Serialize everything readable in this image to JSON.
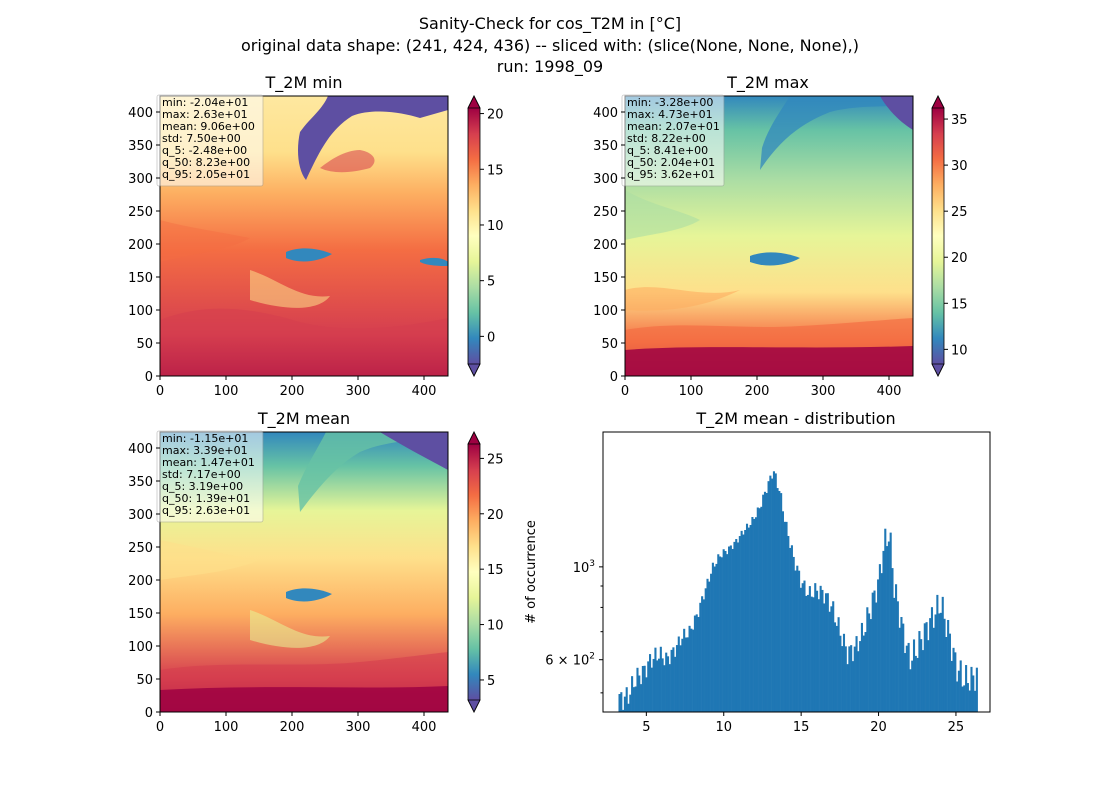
{
  "figure": {
    "suptitle": [
      "Sanity-Check for cos_T2M in [°C]",
      "original data shape: (241, 424, 436) -- sliced with: (slice(None, None, None),)",
      "run: 1998_09"
    ]
  },
  "maps": [
    {
      "title": "T_2M min",
      "x_ticks": [
        "0",
        "100",
        "200",
        "300",
        "400"
      ],
      "y_ticks": [
        "0",
        "50",
        "100",
        "150",
        "200",
        "250",
        "300",
        "350",
        "400"
      ],
      "cbar_ticks": [
        "0",
        "5",
        "10",
        "15",
        "20"
      ],
      "cbar_values": [
        0,
        5,
        10,
        15,
        20
      ],
      "cbar_range": [
        -2.48,
        20.5
      ],
      "stats": [
        "min: -2.04e+01",
        "max: 2.63e+01",
        "mean: 9.06e+00",
        "std: 7.50e+00",
        "q_5: -2.48e+00",
        "q_50: 8.23e+00",
        "q_95: 2.05e+01"
      ]
    },
    {
      "title": "T_2M max",
      "x_ticks": [
        "0",
        "100",
        "200",
        "300",
        "400"
      ],
      "y_ticks": [
        "0",
        "50",
        "100",
        "150",
        "200",
        "250",
        "300",
        "350",
        "400"
      ],
      "cbar_ticks": [
        "10",
        "15",
        "20",
        "25",
        "30",
        "35"
      ],
      "cbar_values": [
        10,
        15,
        20,
        25,
        30,
        35
      ],
      "cbar_range": [
        8.41,
        36.2
      ],
      "stats": [
        "min: -3.28e+00",
        "max: 4.73e+01",
        "mean: 2.07e+01",
        "std: 8.22e+00",
        "q_5: 8.41e+00",
        "q_50: 2.04e+01",
        "q_95: 3.62e+01"
      ]
    },
    {
      "title": "T_2M mean",
      "x_ticks": [
        "0",
        "100",
        "200",
        "300",
        "400"
      ],
      "y_ticks": [
        "0",
        "50",
        "100",
        "150",
        "200",
        "250",
        "300",
        "350",
        "400"
      ],
      "cbar_ticks": [
        "5",
        "10",
        "15",
        "20",
        "25"
      ],
      "cbar_values": [
        5,
        10,
        15,
        20,
        25
      ],
      "cbar_range": [
        3.19,
        26.3
      ],
      "stats": [
        "min: -1.15e+01",
        "max: 3.39e+01",
        "mean: 1.47e+01",
        "std: 7.17e+00",
        "q_5: 3.19e+00",
        "q_50: 1.39e+01",
        "q_95: 2.63e+01"
      ]
    }
  ],
  "colors": {
    "spectral_r": [
      "#5e4fa2",
      "#3288bd",
      "#66c2a5",
      "#abdda4",
      "#e6f598",
      "#ffffbf",
      "#fee08b",
      "#fdae61",
      "#f46d43",
      "#d53e4f",
      "#9e0142"
    ],
    "bar": "#1f77b4"
  },
  "chart_data": {
    "type": "bar",
    "title": "T_2M mean - distribution",
    "xlabel": "",
    "ylabel": "# of occurrence",
    "yscale": "log",
    "xlim": [
      2.2,
      27.2
    ],
    "ylim": [
      450,
      2100
    ],
    "x_ticks": [
      5,
      10,
      15,
      20,
      25
    ],
    "y_tick_labels": [
      {
        "value": 1000,
        "base": "10",
        "exp": "3"
      },
      {
        "value": 600,
        "base": "6 × 10",
        "exp": "2"
      }
    ],
    "y_minor_ticks": [
      500,
      700,
      800,
      900
    ],
    "profile": [
      [
        3.2,
        480
      ],
      [
        3.8,
        490
      ],
      [
        4.3,
        540
      ],
      [
        4.8,
        560
      ],
      [
        5.3,
        600
      ],
      [
        5.8,
        620
      ],
      [
        6.3,
        600
      ],
      [
        6.8,
        630
      ],
      [
        7.3,
        680
      ],
      [
        7.8,
        700
      ],
      [
        8.3,
        770
      ],
      [
        8.8,
        880
      ],
      [
        9.3,
        1000
      ],
      [
        9.8,
        1070
      ],
      [
        10.3,
        1100
      ],
      [
        10.8,
        1150
      ],
      [
        11.3,
        1220
      ],
      [
        11.8,
        1280
      ],
      [
        12.3,
        1380
      ],
      [
        12.8,
        1550
      ],
      [
        13.2,
        1700
      ],
      [
        13.6,
        1520
      ],
      [
        14.0,
        1260
      ],
      [
        14.5,
        1050
      ],
      [
        15.0,
        920
      ],
      [
        15.5,
        860
      ],
      [
        16.0,
        880
      ],
      [
        16.5,
        860
      ],
      [
        17.0,
        800
      ],
      [
        17.5,
        700
      ],
      [
        18.0,
        620
      ],
      [
        18.5,
        640
      ],
      [
        19.0,
        700
      ],
      [
        19.5,
        800
      ],
      [
        20.0,
        920
      ],
      [
        20.4,
        1150
      ],
      [
        20.7,
        1200
      ],
      [
        21.0,
        900
      ],
      [
        21.5,
        720
      ],
      [
        22.0,
        600
      ],
      [
        22.5,
        640
      ],
      [
        23.0,
        700
      ],
      [
        23.5,
        760
      ],
      [
        24.0,
        820
      ],
      [
        24.5,
        700
      ],
      [
        25.0,
        580
      ],
      [
        25.5,
        540
      ],
      [
        26.0,
        540
      ],
      [
        26.3,
        550
      ]
    ],
    "bin_width": 0.116,
    "x_start": 3.2,
    "x_end": 26.3
  }
}
